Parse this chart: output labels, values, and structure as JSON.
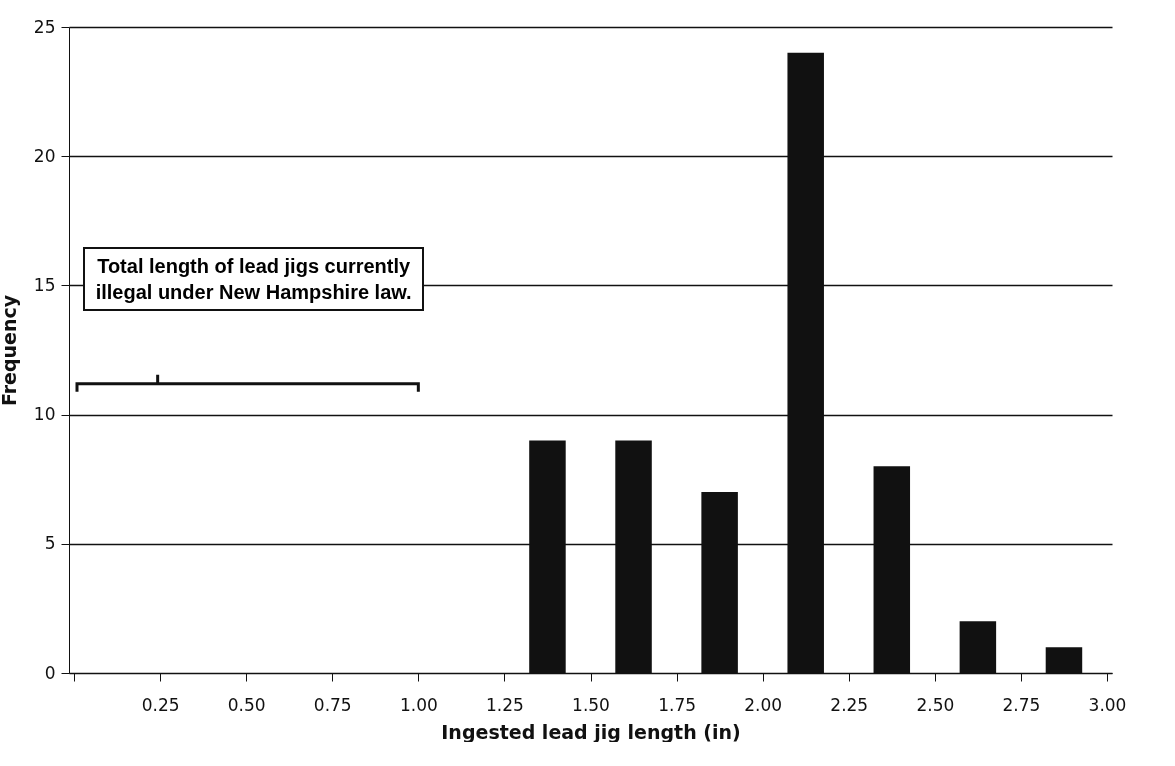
{
  "chart_data": {
    "type": "histogram",
    "xlabel": "Ingested lead jig length (in)",
    "ylabel": "Frequency",
    "bins": [
      0,
      0.25,
      0.5,
      0.75,
      1,
      1.25,
      1.5,
      1.75,
      2,
      2.25,
      2.5,
      2.75,
      3
    ],
    "values": [
      0,
      0,
      0,
      0,
      0,
      9,
      9,
      7,
      24,
      8,
      2,
      1
    ],
    "color": "#111111",
    "xlim": [
      0,
      3
    ],
    "xticks": [
      {
        "value": 0,
        "label": null
      },
      {
        "value": 0.25,
        "label": "0.25"
      },
      {
        "value": 0.5,
        "label": "0.50"
      },
      {
        "value": 0.75,
        "label": "0.75"
      },
      {
        "value": 1,
        "label": "1.00"
      },
      {
        "value": 1.25,
        "label": "1.25"
      },
      {
        "value": 1.5,
        "label": "1.50"
      },
      {
        "value": 1.75,
        "label": "1.75"
      },
      {
        "value": 2,
        "label": "2.00"
      },
      {
        "value": 2.25,
        "label": "2.25"
      },
      {
        "value": 2.5,
        "label": "2.50"
      },
      {
        "value": 2.75,
        "label": "2.75"
      },
      {
        "value": 3,
        "label": "3.00"
      }
    ],
    "ylim": [
      0,
      25
    ],
    "yticks": [
      0,
      5,
      10,
      15,
      20,
      25
    ],
    "grid": "y",
    "annotations": [
      "Total length of lead jigs currently illegal under New Hampshire law."
    ]
  }
}
